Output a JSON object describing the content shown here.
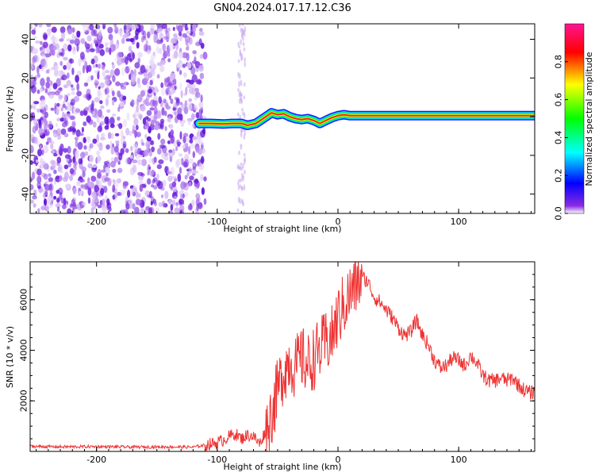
{
  "figure": {
    "title": "GN04.2024.017.17.12.C36"
  },
  "chart_data": [
    {
      "type": "heatmap",
      "title": "GN04.2024.017.17.12.C36",
      "xlabel": "Height of straight line (km)",
      "ylabel": "Frequency (Hz)",
      "xlim": [
        -255,
        163
      ],
      "ylim": [
        -50,
        48
      ],
      "xticks": [
        -200,
        -100,
        0,
        100
      ],
      "yticks": [
        -40,
        -20,
        0,
        20,
        40
      ],
      "colorbar": {
        "label": "Normalized spectral amplitude",
        "range": [
          0,
          1
        ],
        "ticks": [
          0.0,
          0.2,
          0.4,
          0.6,
          0.8
        ],
        "colormap": [
          "#ffffff",
          "#8a2be2",
          "#0000ff",
          "#00ffff",
          "#00ff00",
          "#ffff00",
          "#ff0000",
          "#ff1493"
        ]
      },
      "noise_region": {
        "x_from": -255,
        "x_to": -110,
        "y_from": -50,
        "y_to": 48
      },
      "noise_strip": {
        "x_from": -83,
        "x_to": -77
      },
      "signal_trace": {
        "x": [
          -115,
          -105,
          -95,
          -88,
          -80,
          -75,
          -68,
          -62,
          -55,
          -50,
          -45,
          -40,
          -35,
          -30,
          -25,
          -20,
          -15,
          -10,
          -5,
          0,
          5,
          10,
          15,
          163
        ],
        "y": [
          -3.5,
          -3.5,
          -3.8,
          -3.5,
          -3.5,
          -4.5,
          -3.5,
          -1,
          2,
          1,
          1.5,
          0,
          -1,
          -1.5,
          -1,
          -2,
          -3.5,
          -2,
          -0.5,
          0.5,
          1,
          0.5,
          0.5,
          0.5
        ]
      }
    },
    {
      "type": "line",
      "xlabel": "Height of straight line (km)",
      "ylabel": "SNR (10 * v/v)",
      "xlim": [
        -255,
        163
      ],
      "ylim": [
        0,
        7500
      ],
      "xticks": [
        -200,
        -100,
        0,
        100
      ],
      "yticks": [
        2000,
        4000,
        6000
      ],
      "color": "#ee3333",
      "series": [
        {
          "x": [
            -255,
            -230,
            -200,
            -170,
            -140,
            -120,
            -110,
            -100,
            -95,
            -90,
            -85,
            -80,
            -75,
            -70,
            -65,
            -60,
            -55,
            -50,
            -45,
            -40,
            -35,
            -30,
            -25,
            -20,
            -15,
            -10,
            -5,
            0,
            5,
            10,
            15,
            20,
            25,
            30,
            35,
            40,
            45,
            50,
            55,
            60,
            65,
            70,
            75,
            80,
            85,
            90,
            95,
            100,
            105,
            110,
            115,
            120,
            125,
            130,
            135,
            140,
            145,
            150,
            155,
            160,
            163
          ],
          "values": [
            200,
            180,
            190,
            170,
            180,
            170,
            250,
            350,
            450,
            600,
            700,
            500,
            650,
            600,
            300,
            800,
            1500,
            2400,
            3200,
            3600,
            3300,
            3700,
            3400,
            3700,
            4000,
            4300,
            4500,
            5300,
            5800,
            6200,
            6600,
            6900,
            6700,
            6100,
            5900,
            5600,
            5300,
            4900,
            4600,
            4700,
            5200,
            4600,
            4200,
            3600,
            3300,
            3400,
            3700,
            3600,
            3400,
            3800,
            3500,
            3000,
            2800,
            2800,
            2900,
            2800,
            2900,
            2600,
            2400,
            2300,
            2400
          ]
        }
      ]
    }
  ]
}
